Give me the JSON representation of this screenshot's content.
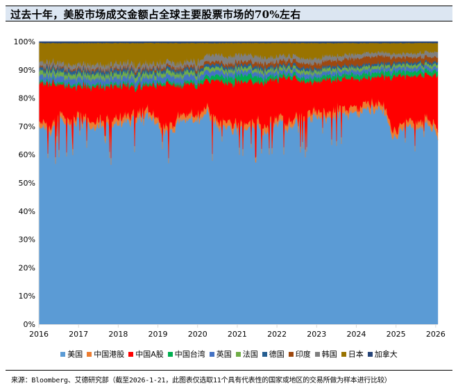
{
  "header": {
    "title": "过去十年，美股市场成交金额占全球主要股票市场的70%左右"
  },
  "legend": {
    "items": [
      {
        "label": "美国",
        "color": "#5b9bd5"
      },
      {
        "label": "中国港股",
        "color": "#ed7d31"
      },
      {
        "label": "中国A股",
        "color": "#ff0000"
      },
      {
        "label": "中国台湾",
        "color": "#00b050"
      },
      {
        "label": "英国",
        "color": "#4472c4"
      },
      {
        "label": "法国",
        "color": "#70ad47"
      },
      {
        "label": "德国",
        "color": "#255e91"
      },
      {
        "label": "印度",
        "color": "#9e480e"
      },
      {
        "label": "韩国",
        "color": "#7f7f7f"
      },
      {
        "label": "日本",
        "color": "#997300"
      },
      {
        "label": "加拿大",
        "color": "#264478"
      }
    ]
  },
  "footer": {
    "source": "来源：Bloomberg、艾德研究部（截至2026-1-21，此图表仅选取11个具有代表性的国家或地区的交易所做为样本进行比较）"
  },
  "chart_data": {
    "type": "area",
    "stacked": true,
    "normalized": true,
    "title": "过去十年，美股市场成交金额占全球主要股票市场的70%左右",
    "xlabel": "",
    "ylabel": "",
    "x_range": [
      "2016-01",
      "2026-01-21"
    ],
    "x_ticks": [
      "2016",
      "2017",
      "2018",
      "2019",
      "2020",
      "2021",
      "2022",
      "2023",
      "2024",
      "2025",
      "2026"
    ],
    "y_ticks": [
      "0%",
      "10%",
      "20%",
      "30%",
      "40%",
      "50%",
      "60%",
      "70%",
      "80%",
      "90%",
      "100%"
    ],
    "ylim": [
      0,
      100
    ],
    "grid": false,
    "legend_position": "bottom",
    "x": [
      2016.0,
      2016.25,
      2016.5,
      2016.75,
      2017.0,
      2017.25,
      2017.5,
      2017.75,
      2018.0,
      2018.25,
      2018.5,
      2018.75,
      2019.0,
      2019.25,
      2019.5,
      2019.75,
      2020.0,
      2020.25,
      2020.5,
      2020.75,
      2021.0,
      2021.25,
      2021.5,
      2021.75,
      2022.0,
      2022.25,
      2022.5,
      2022.75,
      2023.0,
      2023.25,
      2023.5,
      2023.75,
      2024.0,
      2024.25,
      2024.5,
      2024.75,
      2025.0,
      2025.25,
      2025.5,
      2025.75,
      2026.05
    ],
    "series": [
      {
        "name": "美国",
        "values": [
          70,
          68,
          72,
          70,
          72,
          70,
          70,
          70,
          70,
          72,
          72,
          74,
          70,
          66,
          70,
          72,
          72,
          74,
          68,
          70,
          68,
          70,
          68,
          66,
          70,
          66,
          70,
          70,
          72,
          70,
          72,
          72,
          72,
          74,
          74,
          70,
          64,
          70,
          68,
          70,
          66
        ]
      },
      {
        "name": "中国港股",
        "values": [
          2,
          2,
          2,
          2,
          2,
          2,
          2,
          2,
          2,
          2,
          2,
          2,
          2,
          2,
          2,
          2,
          2,
          2,
          2,
          2,
          2,
          2,
          2,
          2,
          2,
          2,
          2,
          2,
          2,
          2,
          2,
          2,
          2,
          2,
          2,
          2,
          2,
          2,
          2,
          2,
          2
        ]
      },
      {
        "name": "中国A股",
        "values": [
          13,
          15,
          11,
          12,
          10,
          12,
          12,
          12,
          12,
          10,
          9,
          8,
          12,
          16,
          11,
          10,
          10,
          10,
          15,
          13,
          15,
          14,
          14,
          16,
          12,
          16,
          12,
          11,
          10,
          12,
          10,
          10,
          10,
          8,
          8,
          12,
          20,
          14,
          16,
          14,
          18
        ]
      },
      {
        "name": "中国台湾",
        "values": [
          0.8,
          0.8,
          0.8,
          0.8,
          0.8,
          0.8,
          0.8,
          0.8,
          0.9,
          0.9,
          0.9,
          0.9,
          0.9,
          0.9,
          0.9,
          1.0,
          1.2,
          1.5,
          1.8,
          2.0,
          2.2,
          2.5,
          2.0,
          1.5,
          1.2,
          1.2,
          1.2,
          1.2,
          1.4,
          1.4,
          1.5,
          1.5,
          1.6,
          1.6,
          1.6,
          1.6,
          1.5,
          1.5,
          1.5,
          1.6,
          1.6
        ]
      },
      {
        "name": "英国",
        "values": [
          2,
          2,
          2,
          2,
          2,
          2,
          2,
          2,
          2,
          2,
          2,
          2,
          2,
          2,
          2,
          2,
          1.8,
          1.8,
          1.6,
          1.6,
          1.4,
          1.4,
          1.4,
          1.4,
          1.4,
          1.4,
          1.4,
          1.4,
          1.3,
          1.3,
          1.3,
          1.3,
          1.3,
          1.3,
          1.3,
          1.3,
          1.3,
          1.3,
          1.3,
          1.3,
          1.3
        ]
      },
      {
        "name": "法国",
        "values": [
          1.5,
          1.5,
          1.5,
          1.5,
          1.5,
          1.5,
          1.5,
          1.5,
          1.5,
          1.5,
          1.5,
          1.5,
          1.4,
          1.4,
          1.4,
          1.4,
          1.3,
          1.3,
          1.2,
          1.2,
          1.1,
          1.1,
          1.1,
          1.1,
          1.1,
          1.1,
          1.1,
          1.1,
          1.0,
          1.0,
          1.0,
          1.0,
          1.0,
          1.0,
          1.0,
          1.0,
          1.0,
          1.0,
          1.0,
          1.0,
          1.0
        ]
      },
      {
        "name": "德国",
        "values": [
          1.2,
          1.2,
          1.2,
          1.2,
          1.2,
          1.2,
          1.2,
          1.2,
          1.2,
          1.2,
          1.2,
          1.2,
          1.1,
          1.1,
          1.1,
          1.1,
          1.0,
          1.0,
          1.0,
          1.0,
          0.9,
          0.9,
          0.9,
          0.9,
          0.9,
          0.9,
          0.9,
          0.9,
          0.8,
          0.8,
          0.8,
          0.8,
          0.8,
          0.8,
          0.8,
          0.8,
          0.8,
          0.8,
          0.8,
          0.8,
          0.8
        ]
      },
      {
        "name": "印度",
        "values": [
          0.5,
          0.5,
          0.5,
          0.5,
          0.6,
          0.6,
          0.6,
          0.6,
          0.7,
          0.7,
          0.7,
          0.7,
          0.8,
          0.8,
          0.8,
          0.8,
          0.9,
          1.0,
          1.0,
          1.0,
          1.1,
          1.2,
          1.3,
          1.4,
          1.4,
          1.4,
          1.5,
          1.5,
          1.6,
          1.8,
          2.0,
          2.2,
          2.4,
          2.5,
          2.5,
          2.4,
          1.6,
          1.8,
          1.8,
          1.8,
          1.6
        ]
      },
      {
        "name": "韩国",
        "values": [
          1.5,
          1.5,
          1.5,
          1.5,
          1.5,
          1.5,
          1.5,
          1.5,
          1.5,
          1.5,
          1.5,
          1.5,
          1.5,
          1.5,
          1.5,
          1.6,
          2.0,
          2.2,
          2.4,
          2.4,
          2.6,
          2.4,
          2.2,
          2.0,
          1.8,
          1.6,
          1.6,
          1.6,
          1.6,
          1.6,
          1.5,
          1.5,
          1.4,
          1.4,
          1.3,
          1.3,
          1.2,
          1.3,
          1.4,
          1.6,
          1.8
        ]
      },
      {
        "name": "日本",
        "values": [
          6.5,
          6.5,
          6.8,
          7.0,
          7.2,
          7.2,
          7.2,
          7.2,
          7.0,
          6.8,
          7.5,
          7.2,
          7.0,
          6.4,
          7.1,
          6.4,
          6.6,
          4.0,
          4.0,
          4.6,
          4.2,
          3.9,
          4.5,
          5.1,
          4.6,
          4.5,
          4.4,
          5.4,
          5.0,
          4.4,
          4.2,
          4.0,
          3.8,
          3.2,
          3.3,
          3.1,
          3.8,
          3.5,
          3.8,
          3.2,
          3.1
        ]
      },
      {
        "name": "加拿大",
        "values": [
          0.5,
          0.5,
          0.5,
          0.5,
          0.5,
          0.5,
          0.5,
          0.5,
          0.5,
          0.5,
          0.5,
          0.5,
          0.5,
          0.5,
          0.5,
          0.5,
          0.5,
          0.5,
          0.5,
          0.5,
          0.5,
          0.5,
          0.5,
          0.5,
          0.5,
          0.5,
          0.5,
          0.5,
          0.5,
          0.5,
          0.5,
          0.5,
          0.5,
          0.5,
          0.5,
          0.5,
          0.5,
          0.5,
          0.5,
          0.5,
          0.5
        ]
      }
    ]
  }
}
